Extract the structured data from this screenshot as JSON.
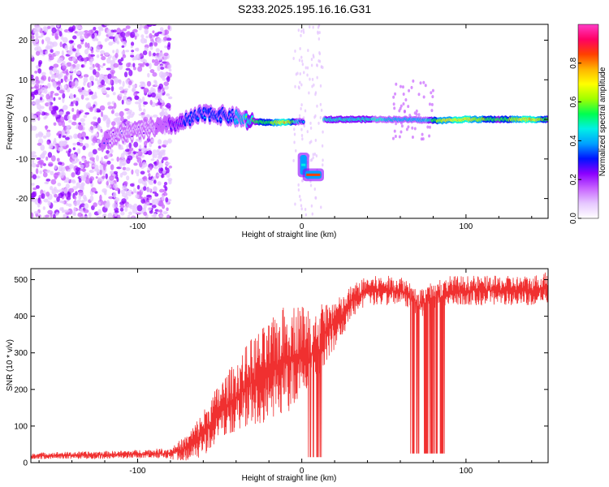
{
  "title": "S233.2025.195.16.16.G31",
  "colors": {
    "snr_line": "#f03030",
    "core_low": "#6a00ff",
    "colorbar_stops": [
      "#ffffff",
      "#e6c8ff",
      "#c864ff",
      "#8c00ff",
      "#0014ff",
      "#00a0ff",
      "#00f0e6",
      "#00ff50",
      "#a0ff00",
      "#ffff00",
      "#ffb400",
      "#ff4000",
      "#ff0064",
      "#ff3cc8"
    ]
  },
  "chart_data": [
    {
      "type": "heatmap",
      "title": "S233.2025.195.16.16.G31",
      "xlabel": "Height of straight line (km)",
      "ylabel": "Frequency (Hz)",
      "xlim": [
        -165,
        150
      ],
      "ylim": [
        -25,
        24
      ],
      "xticks": [
        "-100",
        "0",
        "100"
      ],
      "xtick_values": [
        -100,
        0,
        100
      ],
      "yticks": [
        "-20",
        "-10",
        "0",
        "10",
        "20"
      ],
      "ytick_values": [
        -20,
        -10,
        0,
        10,
        20
      ],
      "colorbar": {
        "label": "Normalized spectral amplitude",
        "range": [
          0,
          1
        ],
        "ticks": [
          "0.0",
          "0.2",
          "0.4",
          "0.6",
          "0.8"
        ],
        "tick_values": [
          0.0,
          0.2,
          0.4,
          0.6,
          0.8
        ]
      },
      "ridge": [
        {
          "x": -122,
          "f": -5.5,
          "amp": 0.25
        },
        {
          "x": -115,
          "f": -4.5,
          "amp": 0.2
        },
        {
          "x": -108,
          "f": -3.5,
          "amp": 0.2
        },
        {
          "x": -100,
          "f": -3.0,
          "amp": 0.2
        },
        {
          "x": -90,
          "f": -2.0,
          "amp": 0.2
        },
        {
          "x": -80,
          "f": -1.5,
          "amp": 0.3
        },
        {
          "x": -74,
          "f": -1.0,
          "amp": 0.35
        },
        {
          "x": -68,
          "f": 0.0,
          "amp": 0.4
        },
        {
          "x": -62,
          "f": 1.0,
          "amp": 0.4
        },
        {
          "x": -55,
          "f": 1.5,
          "amp": 0.4
        },
        {
          "x": -48,
          "f": 1.0,
          "amp": 0.4
        },
        {
          "x": -40,
          "f": 0.5,
          "amp": 0.45
        },
        {
          "x": -30,
          "f": -0.5,
          "amp": 0.6
        },
        {
          "x": -20,
          "f": -0.8,
          "amp": 0.65
        },
        {
          "x": -10,
          "f": -0.8,
          "amp": 0.85
        },
        {
          "x": 0,
          "f": -0.5,
          "amp": 0.4
        },
        {
          "x": 15,
          "f": 0.0,
          "amp": 0.55
        },
        {
          "x": 40,
          "f": 0.0,
          "amp": 0.55
        },
        {
          "x": 60,
          "f": 0.0,
          "amp": 0.5
        },
        {
          "x": 75,
          "f": -0.2,
          "amp": 0.5
        },
        {
          "x": 85,
          "f": -0.3,
          "amp": 0.75
        },
        {
          "x": 100,
          "f": 0.0,
          "amp": 0.8
        },
        {
          "x": 120,
          "f": 0.0,
          "amp": 0.6
        },
        {
          "x": 140,
          "f": 0.0,
          "amp": 0.85
        },
        {
          "x": 150,
          "f": 0.0,
          "amp": 0.6
        }
      ],
      "features": [
        {
          "x0": -1,
          "x1": 3,
          "f0": -14,
          "f1": -9,
          "amp": 0.45
        },
        {
          "x0": 2,
          "x1": 12,
          "f0": -15,
          "f1": -13,
          "amp": 0.85
        }
      ]
    },
    {
      "type": "line",
      "xlabel": "Height of straight line (km)",
      "ylabel": "SNR (10 * v/v)",
      "xlim": [
        -165,
        150
      ],
      "ylim": [
        0,
        530
      ],
      "xticks": [
        "-100",
        "0",
        "100"
      ],
      "xtick_values": [
        -100,
        0,
        100
      ],
      "yticks": [
        "0",
        "100",
        "200",
        "300",
        "400",
        "500"
      ],
      "ytick_values": [
        0,
        100,
        200,
        300,
        400,
        500
      ],
      "series": [
        {
          "x": [
            -165,
            -150,
            -130,
            -110,
            -90,
            -80,
            -70,
            -60,
            -50,
            -40,
            -30,
            -20,
            -10,
            0,
            5,
            10,
            15,
            20,
            25,
            30,
            40,
            50,
            60,
            65,
            70,
            75,
            80,
            90,
            100,
            110,
            120,
            130,
            140,
            150
          ],
          "y": [
            18,
            20,
            20,
            22,
            25,
            25,
            40,
            80,
            140,
            180,
            220,
            240,
            280,
            300,
            310,
            330,
            360,
            380,
            400,
            440,
            470,
            470,
            470,
            460,
            440,
            440,
            460,
            470,
            470,
            470,
            470,
            470,
            470,
            480
          ],
          "spread": [
            10,
            10,
            12,
            12,
            14,
            18,
            40,
            70,
            90,
            110,
            140,
            160,
            170,
            150,
            120,
            110,
            90,
            80,
            60,
            50,
            45,
            45,
            45,
            45,
            45,
            45,
            45,
            45,
            45,
            45,
            45,
            45,
            45,
            50
          ]
        }
      ],
      "dropouts": [
        {
          "x0": 3,
          "x1": 12,
          "y": 15
        },
        {
          "x0": 66,
          "x1": 88,
          "y": 25
        }
      ]
    }
  ]
}
